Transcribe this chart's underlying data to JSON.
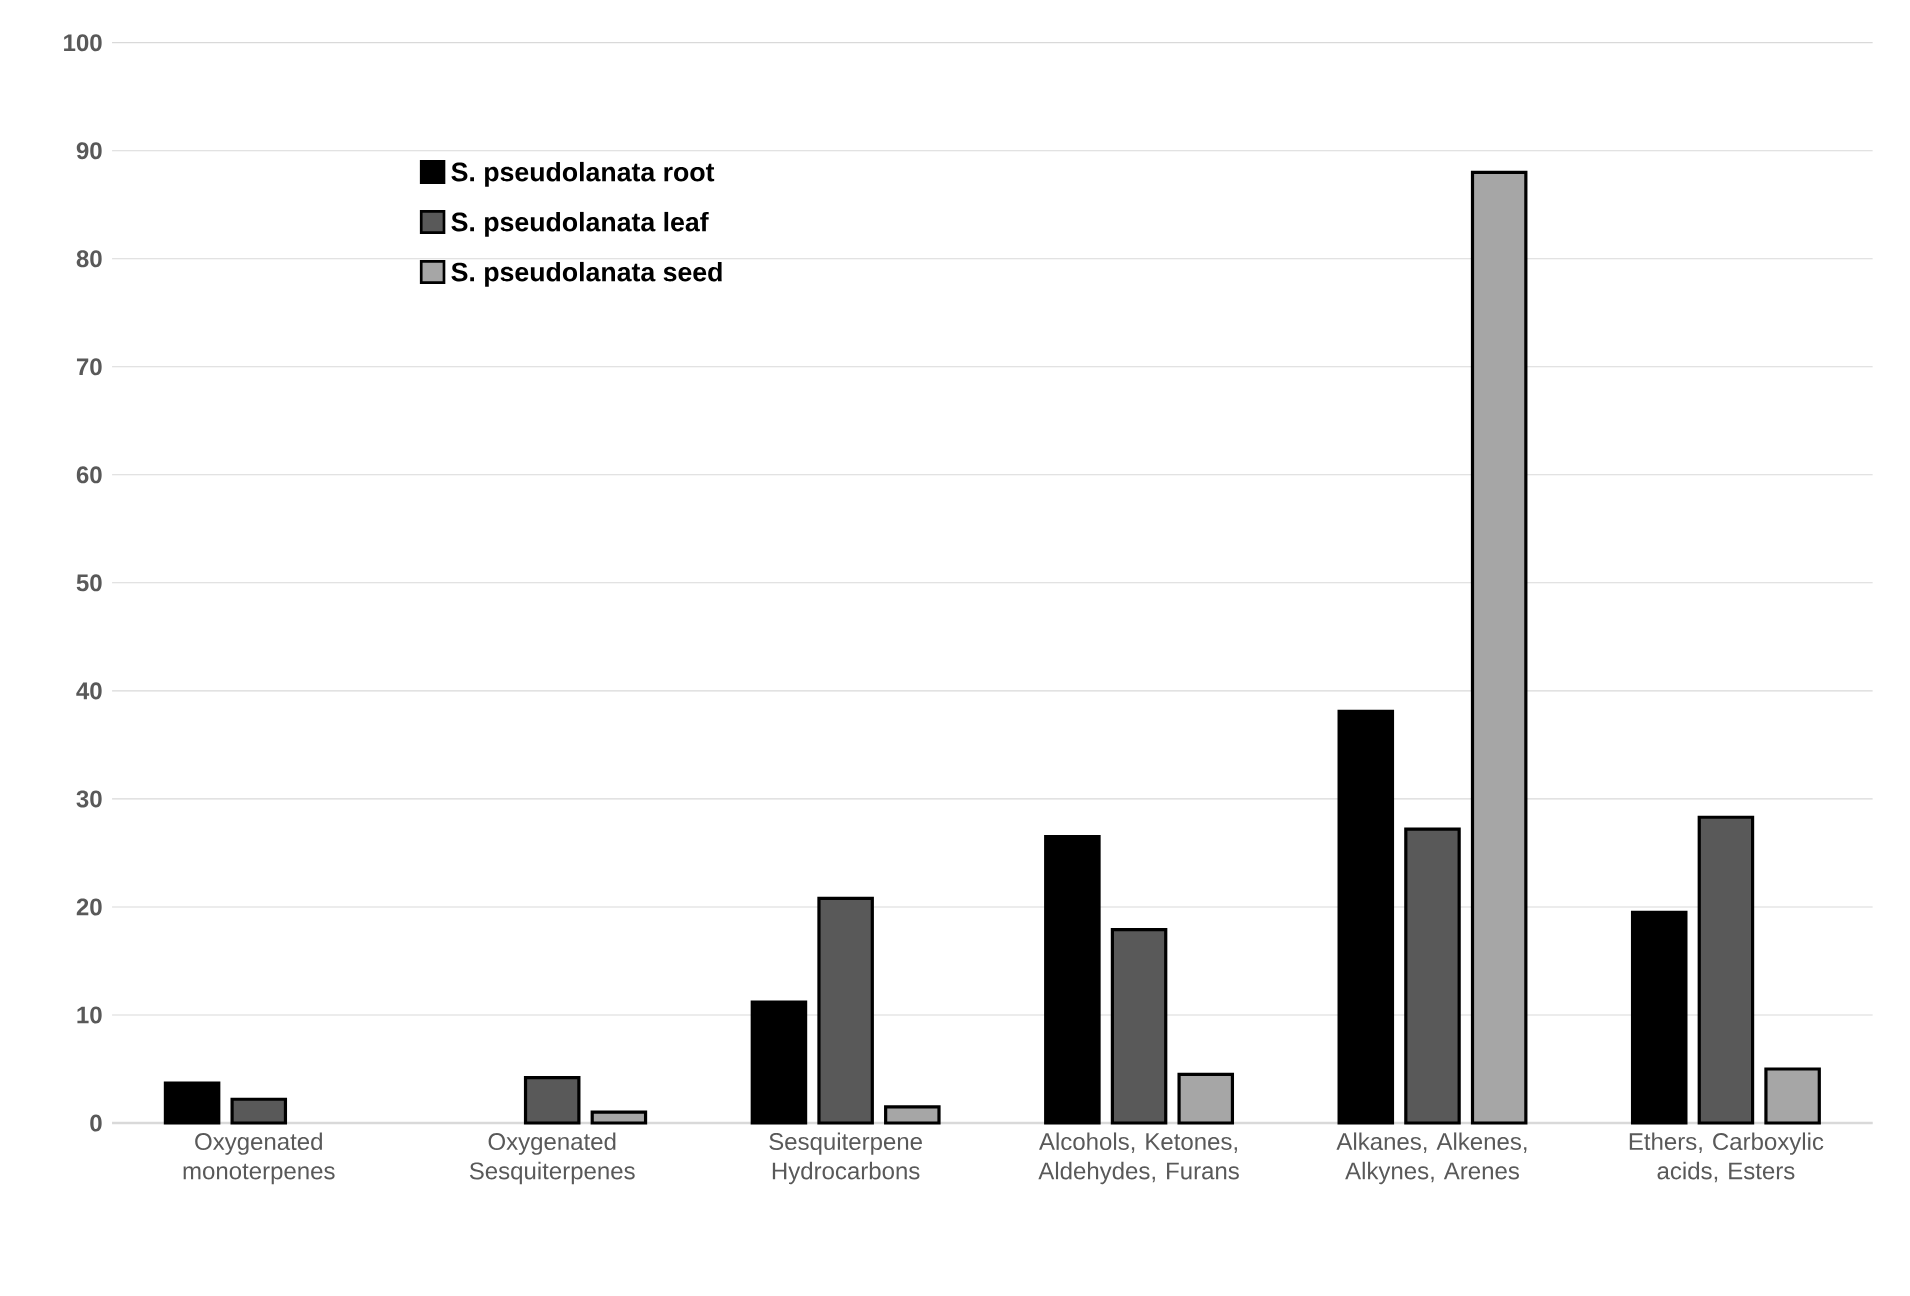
{
  "chart_data": {
    "type": "bar",
    "categories": [
      "Oxygenated monoterpenes",
      "Oxygenated Sesquiterpenes",
      "Sesquiterpene Hydrocarbons",
      "Alcohols, Ketones, Aldehydes, Furans",
      "Alkanes, Alkenes, Alkynes, Arenes",
      "Ethers, Carboxylic acids, Esters"
    ],
    "series": [
      {
        "name": "S. pseudolanata root",
        "color": "#000000",
        "values": [
          3.7,
          null,
          11.2,
          26.5,
          38.1,
          19.5
        ]
      },
      {
        "name": "S. pseudolanata leaf",
        "color": "#595959",
        "values": [
          2.2,
          4.2,
          20.8,
          17.9,
          27.2,
          28.3
        ]
      },
      {
        "name": "S. pseudolanata seed",
        "color": "#a6a6a6",
        "values": [
          null,
          1.0,
          1.5,
          4.5,
          88,
          5.0
        ]
      }
    ],
    "ylim": [
      0,
      100
    ],
    "yticks": [
      0,
      10,
      20,
      30,
      40,
      50,
      60,
      70,
      80,
      90,
      100
    ],
    "grid": "y",
    "legend": "top left"
  }
}
